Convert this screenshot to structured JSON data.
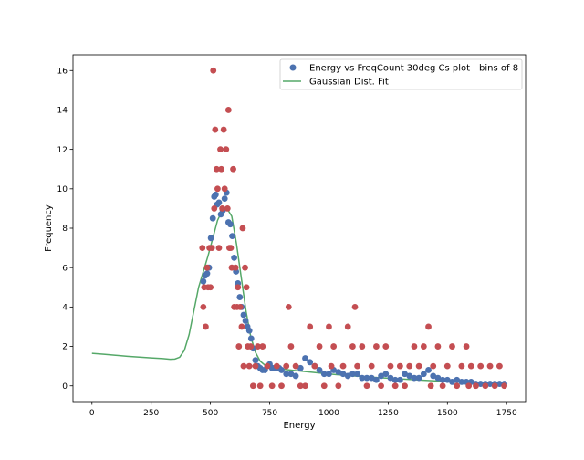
{
  "chart_data": {
    "type": "scatter",
    "title": "",
    "xlabel": "Energy",
    "ylabel": "Frequency",
    "xlim": [
      -80,
      1830
    ],
    "ylim": [
      -0.8,
      16.8
    ],
    "x_ticks": [
      0,
      250,
      500,
      750,
      1000,
      1250,
      1500,
      1750
    ],
    "y_ticks": [
      0,
      2,
      4,
      6,
      8,
      10,
      12,
      14,
      16
    ],
    "grid": false,
    "legend_position": "top-right",
    "colors": {
      "blue": "#4c72b0",
      "red": "#c44e52",
      "green": "#55a868"
    },
    "series": [
      {
        "name": "Energy vs FreqCount 30deg Cs plot - bins of 8",
        "kind": "scatter",
        "color": "#4c72b0",
        "x": [
          470,
          478,
          486,
          494,
          502,
          510,
          516,
          522,
          528,
          536,
          544,
          552,
          560,
          568,
          576,
          584,
          592,
          600,
          608,
          616,
          624,
          632,
          640,
          648,
          656,
          664,
          672,
          680,
          690,
          700,
          710,
          720,
          730,
          740,
          750,
          760,
          770,
          780,
          790,
          800,
          820,
          840,
          860,
          880,
          900,
          920,
          940,
          960,
          980,
          1000,
          1020,
          1040,
          1060,
          1080,
          1100,
          1120,
          1140,
          1160,
          1180,
          1200,
          1220,
          1240,
          1260,
          1280,
          1300,
          1320,
          1340,
          1360,
          1380,
          1400,
          1420,
          1440,
          1460,
          1480,
          1500,
          1520,
          1540,
          1560,
          1580,
          1600,
          1620,
          1640,
          1660,
          1680,
          1700,
          1720,
          1740
        ],
        "y": [
          5.3,
          5.6,
          5.7,
          6.0,
          7.5,
          8.5,
          9.6,
          9.7,
          9.2,
          9.3,
          8.7,
          8.9,
          9.5,
          9.8,
          8.3,
          8.2,
          7.6,
          6.5,
          5.8,
          5.2,
          4.5,
          4.0,
          3.6,
          3.3,
          3.0,
          2.8,
          2.4,
          1.9,
          1.3,
          1.0,
          0.9,
          0.8,
          0.8,
          1.0,
          1.1,
          0.9,
          0.9,
          0.9,
          0.9,
          0.8,
          0.6,
          0.6,
          0.5,
          0.9,
          1.4,
          1.2,
          1.0,
          0.8,
          0.6,
          0.6,
          0.8,
          0.7,
          0.6,
          0.5,
          0.6,
          0.6,
          0.4,
          0.4,
          0.4,
          0.3,
          0.5,
          0.6,
          0.4,
          0.3,
          0.3,
          0.6,
          0.5,
          0.4,
          0.4,
          0.6,
          0.8,
          0.5,
          0.4,
          0.3,
          0.3,
          0.2,
          0.3,
          0.2,
          0.2,
          0.2,
          0.1,
          0.1,
          0.1,
          0.1,
          0.1,
          0.1,
          0.1
        ]
      },
      {
        "name": "",
        "kind": "scatter",
        "color": "#c44e52",
        "x": [
          466,
          470,
          474,
          480,
          486,
          490,
          496,
          500,
          506,
          512,
          516,
          520,
          526,
          530,
          536,
          542,
          546,
          550,
          556,
          560,
          566,
          572,
          576,
          580,
          586,
          590,
          596,
          600,
          606,
          612,
          616,
          620,
          626,
          632,
          636,
          640,
          646,
          652,
          658,
          664,
          670,
          680,
          690,
          700,
          710,
          720,
          740,
          760,
          780,
          800,
          820,
          830,
          840,
          860,
          880,
          900,
          920,
          940,
          960,
          980,
          1000,
          1010,
          1020,
          1040,
          1060,
          1080,
          1100,
          1110,
          1120,
          1140,
          1160,
          1180,
          1200,
          1220,
          1240,
          1260,
          1280,
          1300,
          1320,
          1340,
          1360,
          1380,
          1400,
          1420,
          1430,
          1440,
          1460,
          1480,
          1500,
          1520,
          1540,
          1560,
          1580,
          1590,
          1600,
          1620,
          1640,
          1660,
          1680,
          1700,
          1720,
          1740
        ],
        "y": [
          7,
          4,
          5,
          3,
          6,
          5,
          7,
          5,
          7,
          16,
          9,
          13,
          11,
          10,
          7,
          12,
          11,
          9,
          13,
          10,
          12,
          9,
          14,
          7,
          7,
          6,
          11,
          4,
          6,
          4,
          5,
          2,
          4,
          3,
          8,
          1,
          6,
          5,
          2,
          1,
          2,
          0,
          1,
          2,
          0,
          2,
          1,
          0,
          1,
          0,
          1,
          4,
          2,
          1,
          0,
          0,
          3,
          1,
          2,
          0,
          3,
          1,
          2,
          0,
          1,
          3,
          2,
          4,
          1,
          2,
          0,
          1,
          2,
          0,
          2,
          1,
          0,
          1,
          0,
          1,
          2,
          1,
          2,
          3,
          0,
          1,
          2,
          0,
          1,
          2,
          0,
          1,
          2,
          0,
          1,
          0,
          1,
          0,
          1,
          0,
          1,
          0
        ]
      },
      {
        "name": "Gaussian Dist. Fit",
        "kind": "line",
        "color": "#55a868",
        "x": [
          0,
          50,
          100,
          150,
          200,
          250,
          300,
          330,
          350,
          370,
          390,
          410,
          430,
          450,
          470,
          490,
          510,
          530,
          550,
          570,
          590,
          610,
          630,
          650,
          670,
          690,
          710,
          730,
          750,
          800,
          900,
          1000,
          1100,
          1200,
          1300,
          1400,
          1500,
          1600,
          1700,
          1750
        ],
        "y": [
          1.65,
          1.6,
          1.55,
          1.5,
          1.46,
          1.42,
          1.38,
          1.35,
          1.36,
          1.45,
          1.8,
          2.6,
          3.8,
          5.0,
          5.8,
          6.6,
          7.5,
          8.4,
          8.9,
          9.0,
          8.6,
          7.2,
          5.5,
          3.8,
          2.5,
          1.7,
          1.25,
          1.05,
          0.95,
          0.85,
          0.72,
          0.6,
          0.5,
          0.42,
          0.35,
          0.28,
          0.22,
          0.16,
          0.1,
          0.07
        ]
      }
    ]
  }
}
